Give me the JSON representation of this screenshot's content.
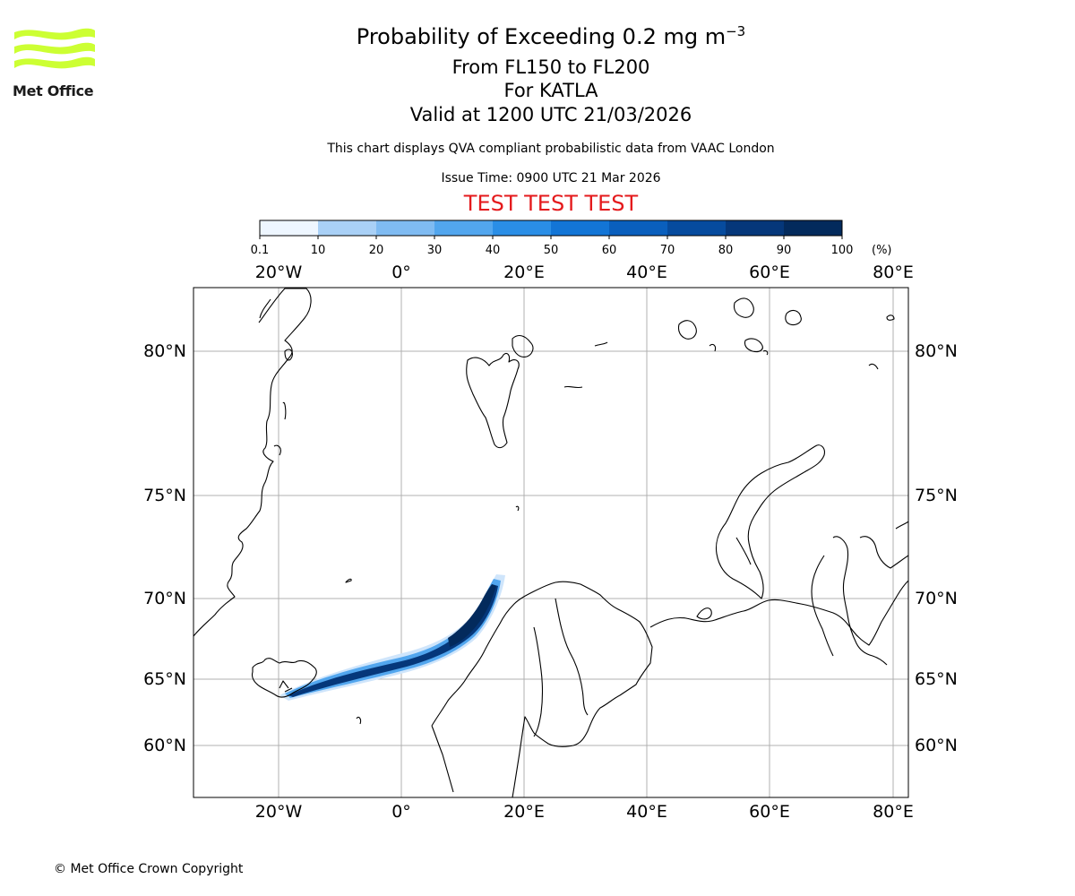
{
  "header": {
    "title_prefix": "Probability of Exceeding 0.2 mg m",
    "title_exponent": "−3",
    "flight_levels": "From FL150 to FL200",
    "volcano": "For KATLA",
    "valid": "Valid at 1200 UTC 21/03/2026",
    "subtitle": "This chart displays QVA compliant probabilistic data from VAAC London",
    "issue_time": "Issue Time: 0900 UTC 21 Mar 2026",
    "test_banner": "TEST TEST TEST"
  },
  "logo": {
    "text": "Met Office",
    "color": "#ccff33"
  },
  "colorbar": {
    "ticks": [
      "0.1",
      "10",
      "20",
      "30",
      "40",
      "50",
      "60",
      "70",
      "80",
      "90",
      "100"
    ],
    "unit": "(%)",
    "colors": [
      "#eef6ff",
      "#cfe5fb",
      "#a9d0f6",
      "#7fbbf2",
      "#52a6ee",
      "#2a8ee6",
      "#1375d6",
      "#0a5fbd",
      "#064b9e",
      "#05377a",
      "#032a5c"
    ]
  },
  "map": {
    "lon_ticks": [
      "20°W",
      "0°",
      "20°E",
      "40°E",
      "60°E",
      "80°E"
    ],
    "lat_ticks": [
      "80°N",
      "75°N",
      "70°N",
      "65°N",
      "60°N"
    ],
    "grid_color": "#b0b0b0"
  },
  "footer": {
    "copyright": "© Met Office Crown Copyright"
  }
}
